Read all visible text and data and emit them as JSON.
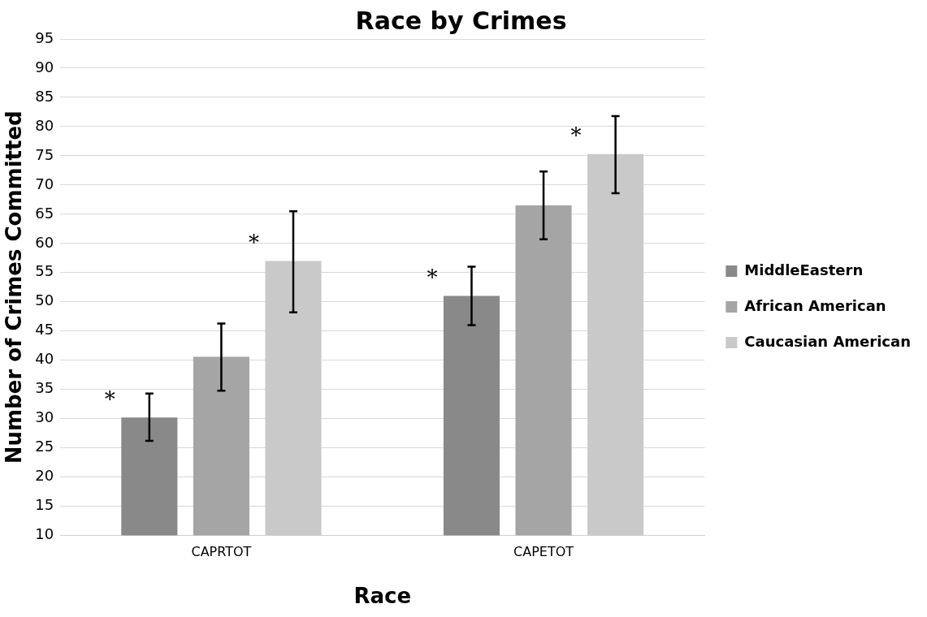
{
  "chart_data": {
    "type": "bar",
    "title": "Race by Crimes",
    "xlabel": "Race",
    "ylabel": "Number of Crimes Committed",
    "categories": [
      "CAPRTOT",
      "CAPETOT"
    ],
    "series": [
      {
        "name": "MiddleEastern",
        "color": "#898989",
        "values": [
          30.2,
          51.0
        ],
        "errors": [
          [
            26.2,
            34.3
          ],
          [
            46.0,
            56.0
          ]
        ]
      },
      {
        "name": "African American",
        "color": "#a5a5a5",
        "values": [
          40.6,
          66.5
        ],
        "errors": [
          [
            34.8,
            46.3
          ],
          [
            60.7,
            72.3
          ]
        ]
      },
      {
        "name": "Caucasian American",
        "color": "#c9c9c9",
        "values": [
          57.0,
          75.3
        ],
        "errors": [
          [
            48.2,
            65.5
          ],
          [
            68.6,
            81.8
          ]
        ]
      }
    ],
    "annotations": [
      "*",
      "*",
      "*",
      "*"
    ],
    "ylim": [
      10,
      95
    ],
    "yticks": [
      10,
      15,
      20,
      25,
      30,
      35,
      40,
      45,
      50,
      55,
      60,
      65,
      70,
      75,
      80,
      85,
      90,
      95
    ],
    "grid": "y",
    "legend": "right"
  }
}
